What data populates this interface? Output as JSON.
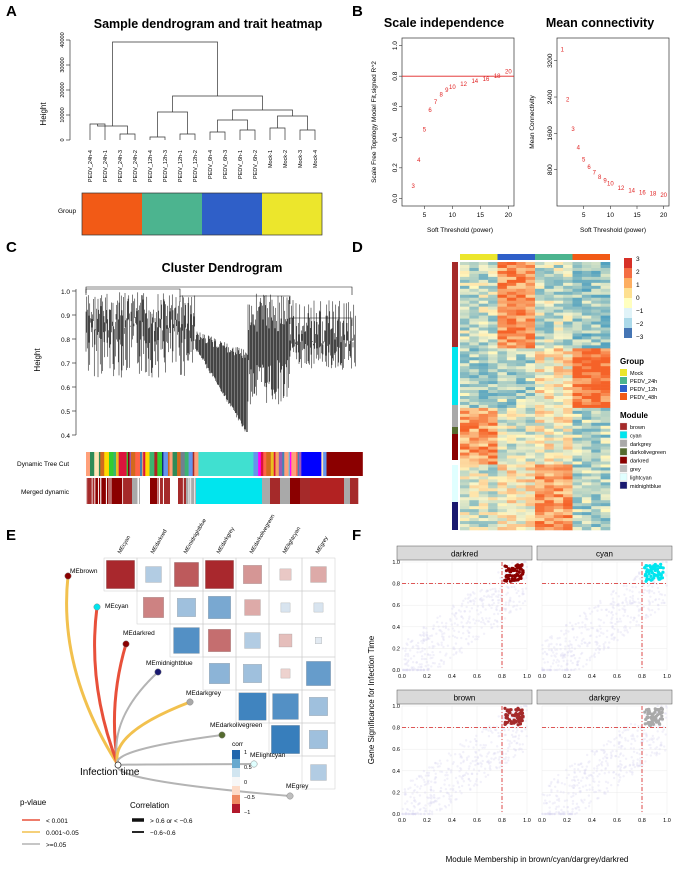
{
  "panels": {
    "A": {
      "letter": "A",
      "title": "Sample dendrogram and trait heatmap",
      "ylabel": "Height",
      "yticks": [
        "40000",
        "30000",
        "20000",
        "10000",
        "0"
      ],
      "samples": [
        "PEDV_24h-4",
        "PEDV_24h-1",
        "PEDV_24h-3",
        "PEDV_24h-2",
        "PEDV_12h-4",
        "PEDV_12h-3",
        "PEDV_12h-1",
        "PEDV_12h-2",
        "PEDV_6h-4",
        "PEDV_6h-3",
        "PEDV_6h-1",
        "PEDV_6h-2",
        "Mock-1",
        "Mock-2",
        "Mock-3",
        "Mock-4"
      ],
      "trait_label": "Group",
      "group_colors": [
        "#f25a16",
        "#4cb48f",
        "#2f5fc8",
        "#ece62c"
      ]
    },
    "B": {
      "letter": "B",
      "scale": {
        "title": "Scale independence",
        "xlabel": "Soft Threshold (power)",
        "ylabel": "Scale Free Topology Model Fit,signed R^2",
        "yticks": [
          "0.0",
          "0.2",
          "0.4",
          "0.6",
          "0.8",
          "1.0"
        ],
        "xticks": [
          "5",
          "10",
          "15",
          "20"
        ],
        "cutoff": 0.8
      },
      "connectivity": {
        "title": "Mean connectivity",
        "xlabel": "Soft Threshold (power)",
        "ylabel": "Mean Connectivity",
        "yticks": [
          "800",
          "1600",
          "2400",
          "3200"
        ],
        "xticks": [
          "5",
          "10",
          "15",
          "20"
        ]
      }
    },
    "C": {
      "letter": "C",
      "title": "Cluster Dendrogram",
      "ylabel": "Height",
      "yticks": [
        "1.0",
        "0.9",
        "0.8",
        "0.7",
        "0.6",
        "0.5",
        "0.4"
      ],
      "row1": "Dynamic Tree Cut",
      "row2": "Merged dynamic"
    },
    "D": {
      "letter": "D",
      "scale_ticks": [
        "3",
        "2",
        "1",
        "0",
        "−1",
        "−2",
        "−3"
      ],
      "group_title": "Group",
      "groups": [
        {
          "name": "Mock",
          "color": "#ece62c"
        },
        {
          "name": "PEDV_24h",
          "color": "#4cb48f"
        },
        {
          "name": "PEDV_12h",
          "color": "#2f5fc8"
        },
        {
          "name": "PEDV_48h",
          "color": "#f25a16"
        }
      ],
      "module_title": "Module",
      "modules": [
        {
          "name": "brown",
          "color": "#a52a2a"
        },
        {
          "name": "cyan",
          "color": "#00e5ee"
        },
        {
          "name": "darkgrey",
          "color": "#a9a9a9"
        },
        {
          "name": "darkolivegreen",
          "color": "#556b2f"
        },
        {
          "name": "darkred",
          "color": "#8b0000"
        },
        {
          "name": "grey",
          "color": "#bebebe"
        },
        {
          "name": "lightcyan",
          "color": "#e0ffff"
        },
        {
          "name": "midnightblue",
          "color": "#191970"
        }
      ]
    },
    "E": {
      "letter": "E",
      "nodes": [
        "MEbrown",
        "MEcyan",
        "MEdarkred",
        "MEmidnightblue",
        "MEdarkgrey",
        "MEdarkolivegreen",
        "MElightcyan",
        "MEgrey"
      ],
      "columns": [
        "MEcyan",
        "MEdarkred",
        "MEmidnightblue",
        "MEdarkgrey",
        "MEdarkolivegreen",
        "MElightcyan",
        "MEgrey"
      ],
      "trait": "Infection time",
      "corr_title": "corr",
      "corr_ticks": [
        "1",
        "0.5",
        "0",
        "−0.5",
        "−1"
      ],
      "pvalue_title": "p-vlaue",
      "pvalue_items": [
        {
          "label": "< 0.001",
          "color": "#e8503a"
        },
        {
          "label": "0.001~0.05",
          "color": "#f2c14e"
        },
        {
          "label": ">=0.05",
          "color": "#b4b4b4"
        }
      ],
      "correlation_title": "Correlation",
      "correlation_items": [
        "> 0.6 or < −0.6",
        "−0.6~0.6"
      ]
    },
    "F": {
      "letter": "F",
      "facets": [
        {
          "name": "darkred",
          "color": "#8b0000"
        },
        {
          "name": "cyan",
          "color": "#00e5ee"
        },
        {
          "name": "brown",
          "color": "#a52a2a"
        },
        {
          "name": "darkgrey",
          "color": "#a9a9a9"
        }
      ],
      "xticks": [
        "0.0",
        "0.2",
        "0.4",
        "0.6",
        "0.8",
        "1.0"
      ],
      "yticks": [
        "0.0",
        "0.2",
        "0.4",
        "0.6",
        "0.8",
        "1.0"
      ],
      "xlabel": "Module Membership in brown/cyan/dargrey/darkred",
      "ylabel": "Gene Significance for Infection Time"
    }
  },
  "chart_data": [
    {
      "type": "scatter",
      "title": "Scale independence",
      "xlabel": "Soft Threshold (power)",
      "ylabel": "Scale Free Topology Model Fit,signed R^2",
      "x": [
        3,
        4,
        5,
        6,
        7,
        8,
        9,
        10,
        12,
        14,
        16,
        18,
        20
      ],
      "y": [
        0.08,
        0.25,
        0.45,
        0.58,
        0.63,
        0.68,
        0.71,
        0.73,
        0.75,
        0.77,
        0.78,
        0.8,
        0.83
      ],
      "xlim": [
        1,
        21
      ],
      "ylim": [
        -0.05,
        1.05
      ],
      "cutoff": 0.8
    },
    {
      "type": "scatter",
      "title": "Mean connectivity",
      "xlabel": "Soft Threshold (power)",
      "ylabel": "Mean Connectivity",
      "x": [
        1,
        2,
        3,
        4,
        5,
        6,
        7,
        8,
        9,
        10,
        12,
        14,
        16,
        18,
        20
      ],
      "y": [
        3450,
        2350,
        1700,
        1290,
        1020,
        860,
        740,
        640,
        560,
        500,
        400,
        340,
        300,
        270,
        245
      ],
      "xlim": [
        0,
        21
      ],
      "ylim": [
        0,
        3700
      ]
    }
  ]
}
